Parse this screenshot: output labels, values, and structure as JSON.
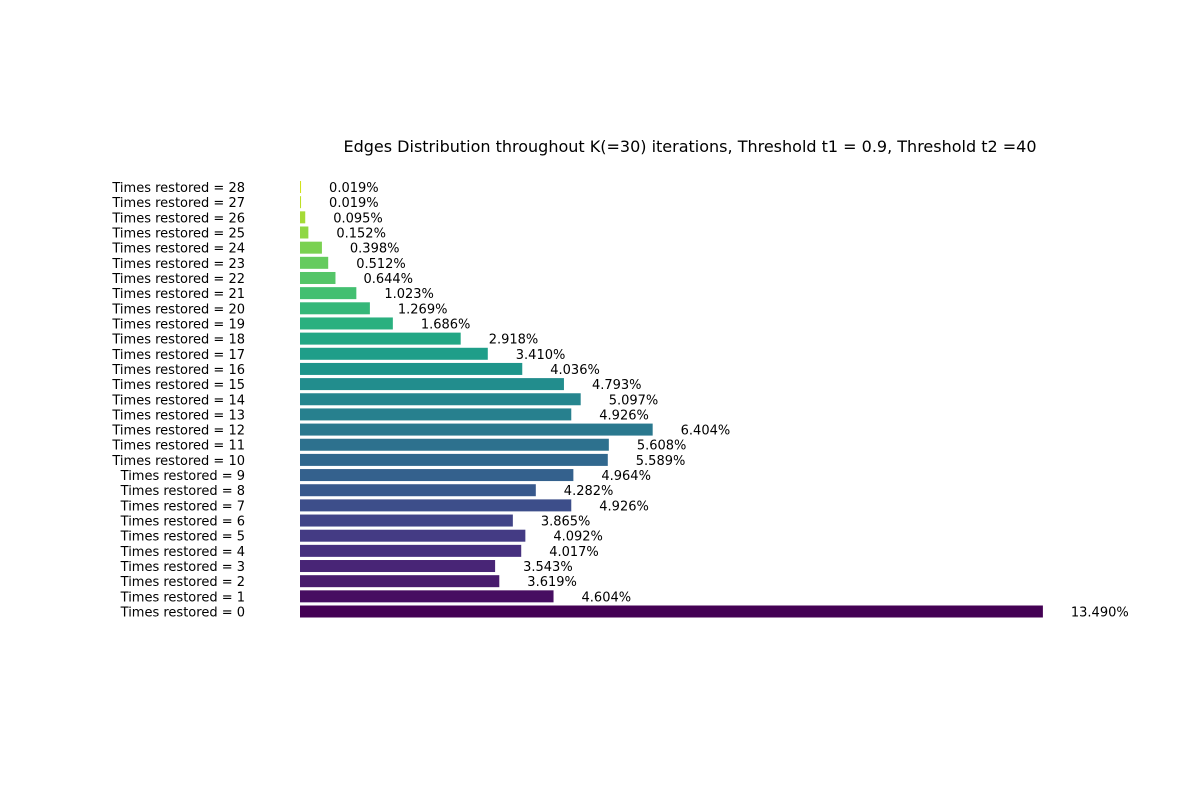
{
  "chart_data": {
    "type": "bar",
    "orientation": "horizontal",
    "title": "Edges Distribution throughout K(=30) iterations, Threshold t1 = 0.9, Threshold t2 =40",
    "xlabel": "",
    "ylabel": "",
    "grid": false,
    "axes_visible": false,
    "colormap": "viridis",
    "categories": [
      "Times restored = 0",
      "Times restored = 1",
      "Times restored = 2",
      "Times restored = 3",
      "Times restored = 4",
      "Times restored = 5",
      "Times restored = 6",
      "Times restored = 7",
      "Times restored = 8",
      "Times restored = 9",
      "Times restored = 10",
      "Times restored = 11",
      "Times restored = 12",
      "Times restored = 13",
      "Times restored = 14",
      "Times restored = 15",
      "Times restored = 16",
      "Times restored = 17",
      "Times restored = 18",
      "Times restored = 19",
      "Times restored = 20",
      "Times restored = 21",
      "Times restored = 22",
      "Times restored = 23",
      "Times restored = 24",
      "Times restored = 25",
      "Times restored = 26",
      "Times restored = 27",
      "Times restored = 28"
    ],
    "values": [
      13.49,
      4.604,
      3.619,
      3.543,
      4.017,
      4.092,
      3.865,
      4.926,
      4.282,
      4.964,
      5.589,
      5.608,
      6.404,
      4.926,
      5.097,
      4.793,
      4.036,
      3.41,
      2.918,
      1.686,
      1.269,
      1.023,
      0.644,
      0.512,
      0.398,
      0.152,
      0.095,
      0.019,
      0.019
    ],
    "value_labels": [
      "13.490%",
      "4.604%",
      "3.619%",
      "3.543%",
      "4.017%",
      "4.092%",
      "3.865%",
      "4.926%",
      "4.282%",
      "4.964%",
      "5.589%",
      "5.608%",
      "6.404%",
      "4.926%",
      "5.097%",
      "4.793%",
      "4.036%",
      "3.410%",
      "2.918%",
      "1.686%",
      "1.269%",
      "1.023%",
      "0.644%",
      "0.512%",
      "0.398%",
      "0.152%",
      "0.095%",
      "0.019%",
      "0.019%"
    ],
    "colors": [
      "#440154",
      "#470e61",
      "#481b6d",
      "#482576",
      "#46307e",
      "#443b84",
      "#414487",
      "#3d4e8a",
      "#38598c",
      "#34618d",
      "#31688e",
      "#2d718e",
      "#2a788e",
      "#27808e",
      "#25858e",
      "#228d8d",
      "#1f958b",
      "#1f9e89",
      "#22a785",
      "#2ab07f",
      "#35b779",
      "#43bf71",
      "#54c568",
      "#65cb5e",
      "#7ad151",
      "#8fd744",
      "#a5db36",
      "#bddf26",
      "#d2e21b"
    ]
  }
}
